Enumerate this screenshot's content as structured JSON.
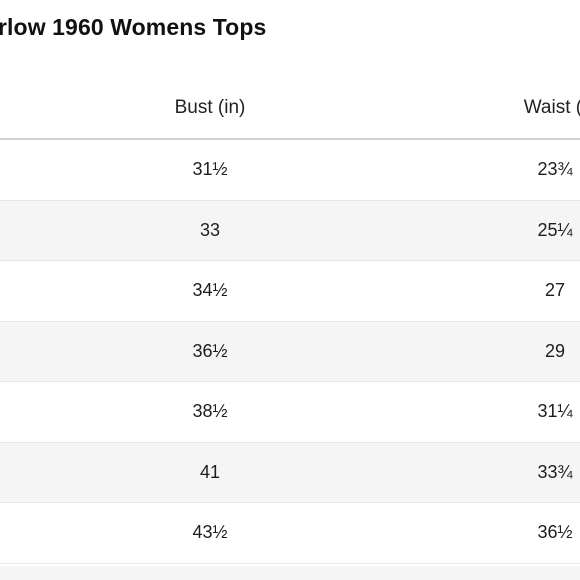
{
  "title": "rlow 1960 Womens Tops",
  "table": {
    "headers": {
      "bust": "Bust (in)",
      "waist": "Waist (i"
    },
    "rows": [
      {
        "bust": "31½",
        "waist": "23¾"
      },
      {
        "bust": "33",
        "waist": "25¼"
      },
      {
        "bust": "34½",
        "waist": "27"
      },
      {
        "bust": "36½",
        "waist": "29"
      },
      {
        "bust": "38½",
        "waist": "31¼"
      },
      {
        "bust": "41",
        "waist": "33¾"
      },
      {
        "bust": "43½",
        "waist": "36½"
      }
    ]
  },
  "colors": {
    "row_shade": "#f5f5f5",
    "header_rule": "#d2d2d2",
    "row_rule": "#e7e7e7"
  }
}
